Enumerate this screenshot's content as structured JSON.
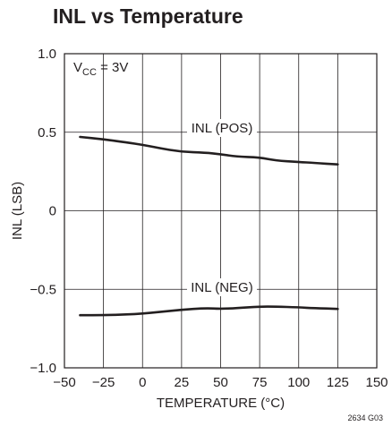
{
  "chart_data": {
    "type": "line",
    "title": "INL vs Temperature",
    "xlabel": "TEMPERATURE (°C)",
    "ylabel": "INL (LSB)",
    "xlim": [
      -50,
      150
    ],
    "ylim": [
      -1.0,
      1.0
    ],
    "x_ticks": [
      "−50",
      "−25",
      "0",
      "25",
      "50",
      "75",
      "100",
      "125",
      "150"
    ],
    "y_ticks": [
      "1.0",
      "0.5",
      "0",
      "−0.5",
      "−1.0"
    ],
    "grid": true,
    "condition": {
      "main": "V",
      "sub": "CC",
      "rest": " = 3V"
    },
    "figure_code": "2634 G03",
    "series": [
      {
        "name": "INL (POS)",
        "x": [
          -40,
          -25,
          -10,
          0,
          10,
          25,
          40,
          50,
          60,
          75,
          85,
          100,
          110,
          125
        ],
        "y": [
          0.47,
          0.455,
          0.435,
          0.42,
          0.4,
          0.375,
          0.37,
          0.36,
          0.345,
          0.34,
          0.32,
          0.31,
          0.305,
          0.295
        ]
      },
      {
        "name": "INL (NEG)",
        "x": [
          -40,
          -25,
          -10,
          0,
          10,
          25,
          40,
          50,
          60,
          75,
          85,
          100,
          110,
          125
        ],
        "y": [
          -0.665,
          -0.665,
          -0.66,
          -0.655,
          -0.645,
          -0.63,
          -0.62,
          -0.625,
          -0.62,
          -0.61,
          -0.61,
          -0.615,
          -0.62,
          -0.625
        ]
      }
    ]
  }
}
